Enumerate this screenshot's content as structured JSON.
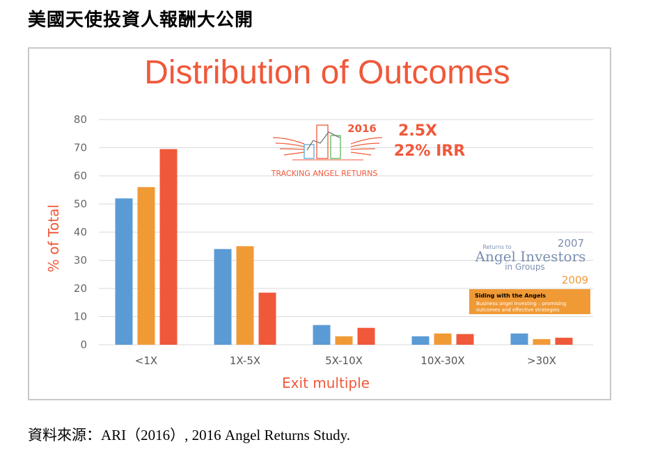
{
  "page": {
    "heading": "美國天使投資人報酬大公開",
    "source": "資料來源：ARI（2016）, 2016 Angel Returns Study."
  },
  "chart_data": {
    "type": "bar",
    "title": "Distribution of Outcomes",
    "xlabel": "Exit multiple",
    "ylabel": "% of Total",
    "ylim": [
      0,
      80
    ],
    "yticks": [
      0,
      10,
      20,
      30,
      40,
      50,
      60,
      70,
      80
    ],
    "categories": [
      "<1X",
      "1X-5X",
      "5X-10X",
      "10X-30X",
      ">30X"
    ],
    "series": [
      {
        "name": "2007",
        "color": "#5b9bd5",
        "values": [
          52,
          34,
          7,
          3,
          4
        ]
      },
      {
        "name": "2009",
        "color": "#f09a36",
        "values": [
          56,
          35,
          3,
          4,
          2
        ]
      },
      {
        "name": "2016",
        "color": "#f0583a",
        "values": [
          69.5,
          18.5,
          6,
          3.8,
          2.5
        ]
      }
    ],
    "grid": true,
    "annotations": {
      "year_2016": "2016",
      "multiple": "2.5X",
      "irr": "22% IRR",
      "logo_2016_caption": "TRACKING ANGEL RETURNS",
      "year_2007": "2007",
      "logo_2007_small": "Returns to",
      "logo_2007_main": "Angel Investors",
      "logo_2007_sub": "in Groups",
      "year_2009": "2009",
      "logo_2009_title": "Siding with the Angels",
      "logo_2009_line1": "Business angel investing – promising",
      "logo_2009_line2": "outcomes and effective strategies"
    },
    "colors": {
      "title": "#f0583a",
      "axis_label": "#f0583a",
      "grid": "#d9d9d9"
    }
  }
}
